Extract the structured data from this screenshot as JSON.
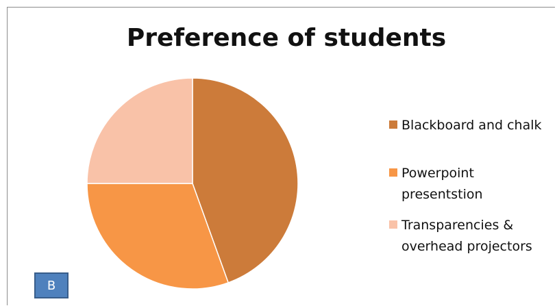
{
  "chart_data": {
    "type": "pie",
    "title": "Preference of students",
    "categories": [
      "Blackboard and chalk",
      "Powerpoint presentstion",
      "Transparencies & overhead projectors"
    ],
    "values": [
      44.5,
      30.5,
      25
    ],
    "colors": [
      "#cc7b3a",
      "#f79646",
      "#f9c2a8"
    ],
    "legend": "right"
  },
  "badge": {
    "label": "B"
  }
}
